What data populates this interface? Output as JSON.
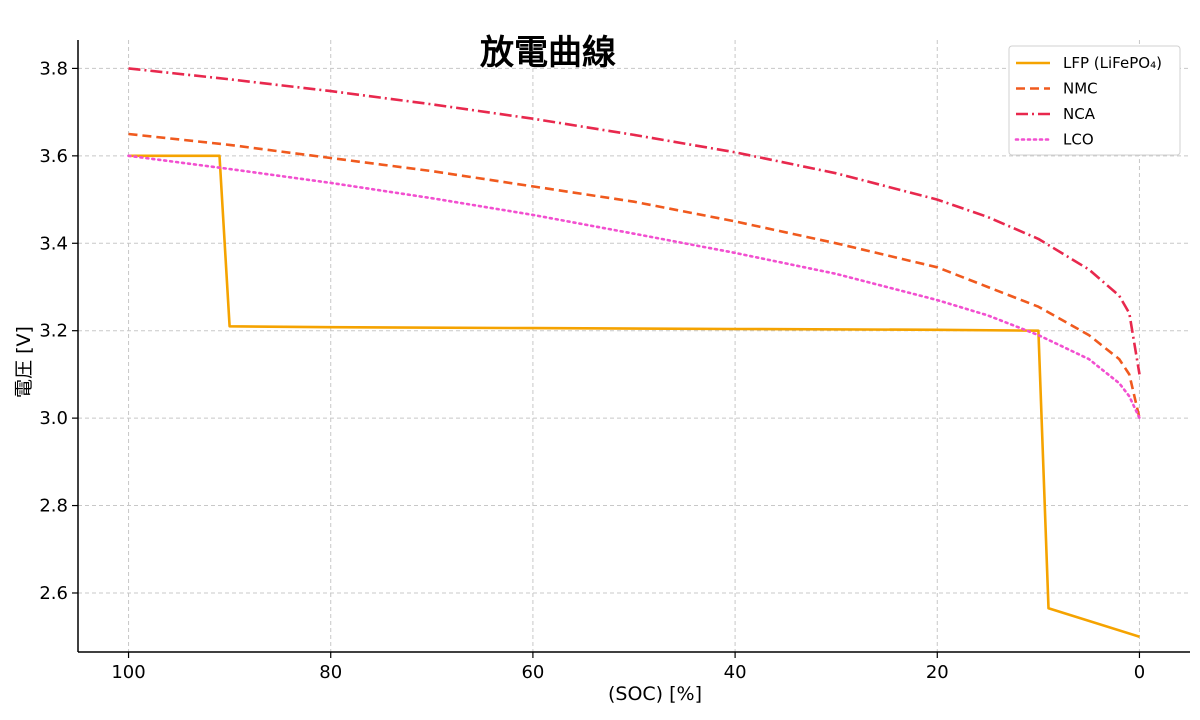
{
  "chart_data": {
    "type": "line",
    "title": "放電曲線",
    "xlabel": "(SOC) [%]",
    "ylabel": "電圧 [V]",
    "xlim": [
      105,
      -5
    ],
    "ylim": [
      2.465,
      3.865
    ],
    "x_ticks": [
      100,
      80,
      60,
      40,
      20,
      0
    ],
    "y_ticks": [
      2.6,
      2.8,
      3.0,
      3.2,
      3.4,
      3.6,
      3.8
    ],
    "grid": true,
    "legend_position": "top-right",
    "series": [
      {
        "name": "LFP (LiFePO₄)",
        "color": "#f5a300",
        "style": "solid",
        "points": [
          [
            100,
            3.6
          ],
          [
            91,
            3.6
          ],
          [
            90,
            3.21
          ],
          [
            80,
            3.208
          ],
          [
            60,
            3.206
          ],
          [
            40,
            3.204
          ],
          [
            20,
            3.202
          ],
          [
            10,
            3.2
          ],
          [
            9,
            2.565
          ],
          [
            0,
            2.5
          ]
        ]
      },
      {
        "name": "NMC",
        "color": "#f05a1e",
        "style": "dashed",
        "points": [
          [
            100,
            3.65
          ],
          [
            90,
            3.625
          ],
          [
            80,
            3.595
          ],
          [
            70,
            3.565
          ],
          [
            60,
            3.53
          ],
          [
            50,
            3.495
          ],
          [
            40,
            3.45
          ],
          [
            30,
            3.4
          ],
          [
            20,
            3.345
          ],
          [
            15,
            3.3
          ],
          [
            10,
            3.255
          ],
          [
            5,
            3.19
          ],
          [
            2,
            3.135
          ],
          [
            1,
            3.1
          ],
          [
            0,
            3.0
          ]
        ]
      },
      {
        "name": "NCA",
        "color": "#e8284d",
        "style": "dashdot",
        "points": [
          [
            100,
            3.8
          ],
          [
            90,
            3.775
          ],
          [
            80,
            3.748
          ],
          [
            70,
            3.718
          ],
          [
            60,
            3.685
          ],
          [
            50,
            3.648
          ],
          [
            40,
            3.608
          ],
          [
            30,
            3.56
          ],
          [
            20,
            3.5
          ],
          [
            15,
            3.46
          ],
          [
            10,
            3.41
          ],
          [
            5,
            3.34
          ],
          [
            2,
            3.28
          ],
          [
            1,
            3.24
          ],
          [
            0,
            3.1
          ]
        ]
      },
      {
        "name": "LCO",
        "color": "#f24fd0",
        "style": "dotted",
        "points": [
          [
            100,
            3.6
          ],
          [
            90,
            3.57
          ],
          [
            80,
            3.538
          ],
          [
            70,
            3.503
          ],
          [
            60,
            3.465
          ],
          [
            50,
            3.422
          ],
          [
            40,
            3.378
          ],
          [
            30,
            3.33
          ],
          [
            20,
            3.27
          ],
          [
            15,
            3.235
          ],
          [
            10,
            3.19
          ],
          [
            5,
            3.135
          ],
          [
            2,
            3.08
          ],
          [
            1,
            3.05
          ],
          [
            0,
            3.0
          ]
        ]
      }
    ]
  }
}
